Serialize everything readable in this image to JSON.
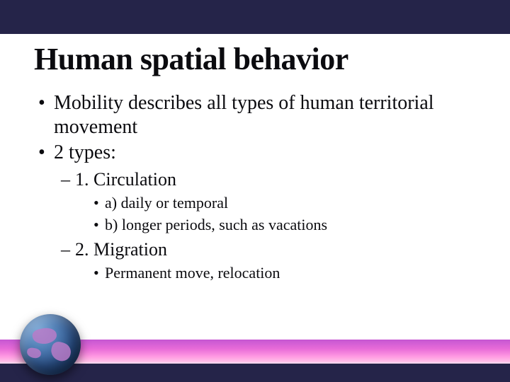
{
  "colors": {
    "top_band": "#252449",
    "text": "#0b0b0f",
    "footer_lowband": "#252449",
    "land": "#b97bc8"
  },
  "slide": {
    "title": "Human spatial behavior",
    "bullets_l1": [
      "Mobility describes all types of human territorial movement",
      "2 types:"
    ],
    "type1": {
      "heading": "1. Circulation",
      "items": [
        "a) daily or temporal",
        "b) longer periods, such as vacations"
      ]
    },
    "type2": {
      "heading": "2. Migration",
      "items": [
        "Permanent move, relocation"
      ]
    }
  }
}
